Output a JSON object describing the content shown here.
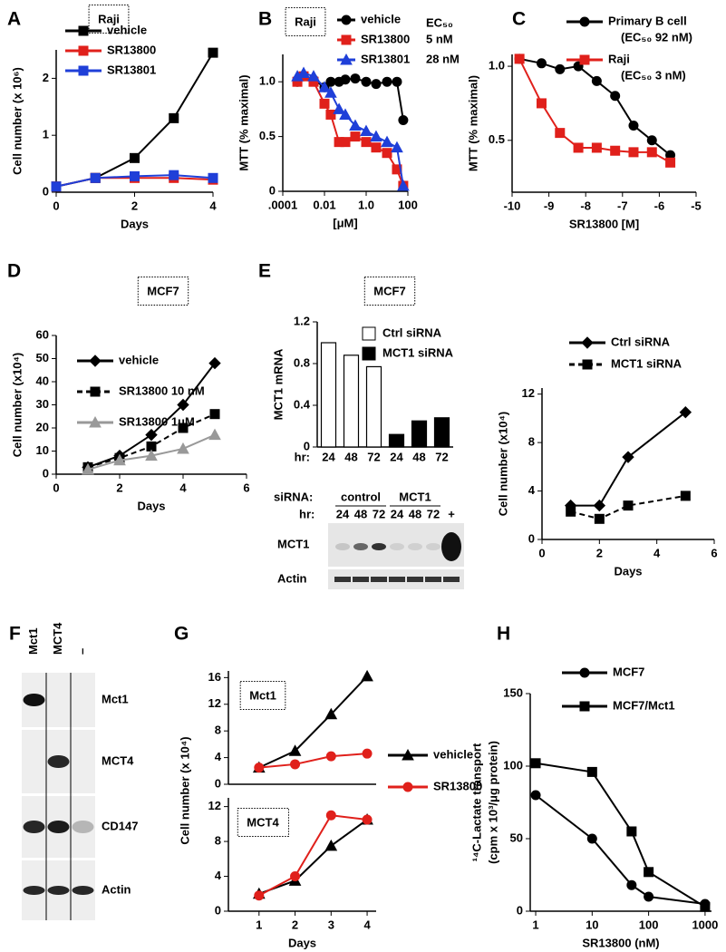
{
  "chart_data": [
    {
      "type": "line",
      "panel": "A",
      "title": "Raji",
      "xlabel": "Days",
      "ylabel": "Cell number (x 10⁶)",
      "x": [
        0,
        1,
        2,
        3,
        4
      ],
      "xlim": [
        0,
        4
      ],
      "xticks": [
        0,
        2,
        4
      ],
      "ylim": [
        0,
        2.5
      ],
      "yticks": [
        0,
        1,
        2
      ],
      "series": [
        {
          "name": "vehicle",
          "color": "#000000",
          "marker": "square",
          "values": [
            0.1,
            0.25,
            0.6,
            1.3,
            2.45
          ]
        },
        {
          "name": "SR13800",
          "color": "#e0201b",
          "marker": "square",
          "values": [
            0.1,
            0.25,
            0.25,
            0.25,
            0.22
          ]
        },
        {
          "name": "SR13801",
          "color": "#1f3fd8",
          "marker": "square",
          "values": [
            0.1,
            0.25,
            0.28,
            0.3,
            0.25
          ]
        }
      ]
    },
    {
      "type": "line",
      "panel": "B",
      "title": "Raji",
      "xlabel": "[μM]",
      "ylabel": "MTT (% maximal)",
      "log_x": true,
      "legend_header": "EC₅₀",
      "x": [
        0.0005,
        0.001,
        0.003,
        0.01,
        0.02,
        0.05,
        0.1,
        0.3,
        1,
        3,
        10,
        30,
        60
      ],
      "xlim": [
        0.0001,
        100
      ],
      "xticks": [
        {
          "value": 0.0001,
          "label": ".0001"
        },
        0.01,
        {
          "value": 1,
          "label": "1.0"
        },
        100
      ],
      "ylim": [
        0,
        1.25
      ],
      "yticks": [
        0,
        0.5,
        {
          "value": 1,
          "label": "1.0"
        }
      ],
      "series": [
        {
          "name": "vehicle",
          "color": "#000000",
          "marker": "circle",
          "values": [
            1.0,
            1.05,
            1.02,
            0.95,
            1.0,
            1.0,
            1.02,
            1.03,
            1.0,
            0.98,
            1.0,
            1.0,
            0.65
          ]
        },
        {
          "name": "SR13800",
          "color": "#e0201b",
          "marker": "square",
          "ec50": "5 nM",
          "values": [
            1.0,
            1.05,
            1.0,
            0.8,
            0.7,
            0.45,
            0.45,
            0.5,
            0.45,
            0.4,
            0.35,
            0.2,
            0.05
          ]
        },
        {
          "name": "SR13801",
          "color": "#1f3fd8",
          "marker": "triangle",
          "ec50": "28 nM",
          "values": [
            1.05,
            1.08,
            1.05,
            0.95,
            0.9,
            0.75,
            0.7,
            0.6,
            0.55,
            0.5,
            0.45,
            0.4,
            0.05
          ]
        }
      ]
    },
    {
      "type": "line",
      "panel": "C",
      "xlabel": "SR13800 [M]",
      "ylabel": "MTT (% maximal)",
      "x": [
        -9.8,
        -9.2,
        -8.7,
        -8.2,
        -7.7,
        -7.2,
        -6.7,
        -6.2,
        -5.7
      ],
      "xlim": [
        -10,
        -5
      ],
      "xticks": [
        -10,
        -9,
        -8,
        -7,
        -6,
        -5
      ],
      "ylim": [
        0.15,
        1.08
      ],
      "yticks": [
        0.5,
        {
          "value": 1,
          "label": "1.0"
        }
      ],
      "series": [
        {
          "name": "Primary B cell",
          "color": "#000000",
          "marker": "circle",
          "ec50": "(EC₅₀ 92 nM)",
          "values": [
            1.05,
            1.02,
            0.98,
            1.0,
            0.9,
            0.8,
            0.6,
            0.5,
            0.4
          ]
        },
        {
          "name": "Raji",
          "color": "#e0201b",
          "marker": "square",
          "ec50": "(EC₅₀ 3 nM)",
          "values": [
            1.05,
            0.75,
            0.55,
            0.45,
            0.45,
            0.43,
            0.42,
            0.42,
            0.35
          ]
        }
      ]
    },
    {
      "type": "line",
      "panel": "D",
      "title": "MCF7",
      "xlabel": "Days",
      "ylabel": "Cell number (x10⁴)",
      "x": [
        1,
        2,
        3,
        4,
        5
      ],
      "xlim": [
        0,
        6
      ],
      "xticks": [
        0,
        2,
        4,
        6
      ],
      "ylim": [
        0,
        60
      ],
      "yticks": [
        0,
        10,
        20,
        30,
        40,
        50,
        60
      ],
      "series": [
        {
          "name": "vehicle",
          "color": "#000000",
          "marker": "diamond",
          "values": [
            3,
            8,
            17,
            30,
            48
          ]
        },
        {
          "name": "SR13800 10 nM",
          "color": "#000000",
          "marker": "square",
          "dash": true,
          "values": [
            3,
            7,
            12,
            20,
            26
          ]
        },
        {
          "name": "SR13800 1μM",
          "color": "#999999",
          "marker": "triangle",
          "values": [
            2,
            6,
            8,
            11,
            17
          ]
        }
      ]
    },
    {
      "type": "bar",
      "panel": "E",
      "title": "MCF7",
      "ylabel": "MCT1 mRNA",
      "xprefix": "hr:",
      "categories": [
        "24",
        "48",
        "72",
        "24",
        "48",
        "72"
      ],
      "ylim": [
        0,
        1.2
      ],
      "yticks": [
        0,
        0.4,
        0.8,
        1.2
      ],
      "series": [
        {
          "name": "Ctrl siRNA",
          "color": "#ffffff",
          "values": [
            1.0,
            0.88,
            0.77,
            null,
            null,
            null
          ]
        },
        {
          "name": "MCT1 siRNA",
          "color": "#000000",
          "values": [
            null,
            null,
            null,
            0.12,
            0.25,
            0.28
          ]
        }
      ]
    },
    {
      "type": "blot",
      "row_prefix": "siRNA:",
      "groups": [
        "control",
        "MCT1"
      ],
      "lane_prefix": "hr:",
      "lanes": [
        "24",
        "48",
        "72",
        "24",
        "48",
        "72",
        "+"
      ],
      "rows": [
        "MCT1",
        "Actin"
      ]
    },
    {
      "type": "line",
      "xlabel": "Days",
      "ylabel": "Cell number (x10⁴)",
      "x": [
        1,
        2,
        3,
        5
      ],
      "xlim": [
        0,
        6
      ],
      "xticks": [
        0,
        2,
        4,
        6
      ],
      "ylim": [
        0,
        12.5
      ],
      "yticks": [
        0,
        4,
        8,
        12
      ],
      "series": [
        {
          "name": "Ctrl siRNA",
          "color": "#000000",
          "marker": "diamond",
          "values": [
            2.8,
            2.8,
            6.8,
            10.5
          ]
        },
        {
          "name": "MCT1 siRNA",
          "color": "#000000",
          "marker": "square",
          "dash": true,
          "values": [
            2.3,
            1.7,
            2.8,
            3.6
          ]
        }
      ]
    },
    {
      "type": "blot",
      "panel": "F",
      "lanes": [
        "Mct1",
        "MCT4",
        "–"
      ],
      "rows": [
        "Mct1",
        "MCT4",
        "CD147",
        "Actin"
      ]
    },
    {
      "type": "line",
      "panel": "G",
      "title": "Mct1",
      "x": [
        1,
        2,
        3,
        4
      ],
      "xlim": [
        0.15,
        4.25
      ],
      "ylim": [
        0,
        17
      ],
      "yticks": [
        0,
        4,
        8,
        12,
        16
      ],
      "series": [
        {
          "name": "vehicle",
          "color": "#000000",
          "marker": "triangle",
          "values": [
            2.5,
            5,
            10.5,
            16.2
          ]
        },
        {
          "name": "SR13800",
          "color": "#e0201b",
          "marker": "circle",
          "values": [
            2.5,
            3,
            4.2,
            4.6
          ]
        }
      ]
    },
    {
      "type": "line",
      "title": "MCT4",
      "xlabel": "Days",
      "ylabel": "Cell number (x 10⁴)",
      "x": [
        1,
        2,
        3,
        4
      ],
      "xlim": [
        0.15,
        4.25
      ],
      "xticks": [
        1,
        2,
        3,
        4
      ],
      "ylim": [
        0,
        13
      ],
      "yticks": [
        0,
        4,
        8,
        12
      ],
      "series": [
        {
          "color": "#000000",
          "marker": "triangle",
          "values": [
            2,
            3.5,
            7.5,
            10.5
          ]
        },
        {
          "color": "#e0201b",
          "marker": "circle",
          "values": [
            1.8,
            4,
            11,
            10.5
          ]
        }
      ]
    },
    {
      "type": "line",
      "panel": "H",
      "xlabel": "SR13800 (nM)",
      "ylabel": "¹⁴C-Lactate transport",
      "ylabel2": "(cpm x 10³/μg protein)",
      "log_x": true,
      "x": [
        1,
        10,
        50,
        100,
        1000
      ],
      "xlim": [
        0.8,
        1300
      ],
      "xticks": [
        1,
        10,
        100,
        1000
      ],
      "ylim": [
        0,
        150
      ],
      "yticks": [
        0,
        50,
        100,
        150
      ],
      "series": [
        {
          "name": "MCF7",
          "color": "#000000",
          "marker": "circle",
          "values": [
            80,
            50,
            18,
            10,
            5
          ]
        },
        {
          "name": "MCF7/Mct1",
          "color": "#000000",
          "marker": "square",
          "values": [
            102,
            96,
            55,
            27,
            3
          ]
        }
      ]
    }
  ]
}
